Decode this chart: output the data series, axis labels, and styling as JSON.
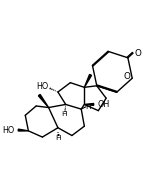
{
  "bg_color": "#ffffff",
  "line_color": "#000000",
  "line_width": 1.0,
  "figsize": [
    1.55,
    1.7
  ],
  "dpi": 100,
  "xlim": [
    0.0,
    10.0
  ],
  "ylim": [
    0.0,
    11.0
  ]
}
